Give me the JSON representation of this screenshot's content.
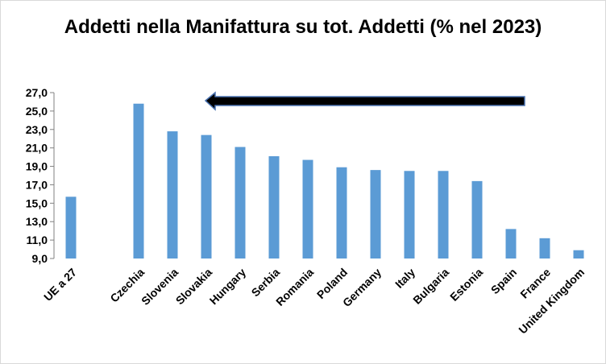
{
  "chart_data": {
    "type": "bar",
    "title": "Addetti nella Manifattura su tot. Addetti (% nel 2023)",
    "categories": [
      "UE a 27",
      "",
      "Czechia",
      "Slovenia",
      "Slovakia",
      "Hungary",
      "Serbia",
      "Romania",
      "Poland",
      "Germany",
      "Italy",
      "Bulgaria",
      "Estonia",
      "Spain",
      "France",
      "United Kingdom"
    ],
    "values": [
      15.7,
      null,
      25.8,
      22.8,
      22.4,
      21.1,
      20.1,
      19.7,
      18.9,
      18.6,
      18.5,
      18.5,
      17.4,
      12.2,
      11.2,
      9.9
    ],
    "ylim": [
      9.0,
      27.0
    ],
    "yticks": [
      "9,0",
      "11,0",
      "13,0",
      "15,0",
      "17,0",
      "19,0",
      "21,0",
      "23,0",
      "25,0",
      "27,0"
    ],
    "xlabel": "",
    "ylabel": "",
    "grid": false,
    "legend": "none",
    "bar_color": "#5b9bd5",
    "annotation": "arrow-pointing-left"
  }
}
